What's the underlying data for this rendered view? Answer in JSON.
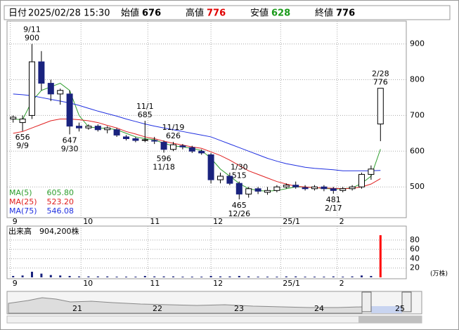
{
  "header": {
    "date_label": "日付",
    "date": "2025/02/28 15:30",
    "open_label": "始値",
    "open": "676",
    "high_label": "高値",
    "high": "776",
    "low_label": "安値",
    "low": "628",
    "close_label": "終値",
    "close": "776"
  },
  "chart_data": [
    {
      "type": "candlestick",
      "open": [
        690,
        680,
        700,
        850,
        790,
        760,
        760,
        670,
        665,
        670,
        660,
        660,
        640,
        635,
        630,
        630,
        625,
        605,
        615,
        610,
        600,
        590,
        520,
        530,
        510,
        480,
        495,
        485,
        490,
        500,
        505,
        498,
        495,
        500,
        495,
        490,
        495,
        500,
        535,
        676
      ],
      "high": [
        700,
        700,
        900,
        880,
        800,
        775,
        770,
        680,
        675,
        675,
        670,
        665,
        645,
        640,
        685,
        640,
        630,
        626,
        620,
        615,
        605,
        595,
        540,
        540,
        515,
        500,
        500,
        500,
        505,
        510,
        515,
        505,
        505,
        505,
        500,
        500,
        505,
        540,
        560,
        776
      ],
      "low": [
        680,
        656,
        690,
        770,
        740,
        730,
        647,
        655,
        660,
        655,
        650,
        640,
        630,
        625,
        625,
        620,
        596,
        600,
        605,
        595,
        590,
        510,
        510,
        505,
        465,
        470,
        480,
        478,
        485,
        495,
        495,
        490,
        490,
        488,
        481,
        485,
        490,
        495,
        520,
        628
      ],
      "close": [
        695,
        690,
        850,
        790,
        760,
        770,
        670,
        665,
        670,
        660,
        665,
        645,
        635,
        630,
        632,
        628,
        605,
        618,
        612,
        600,
        595,
        520,
        530,
        510,
        480,
        495,
        488,
        490,
        500,
        505,
        500,
        495,
        500,
        495,
        490,
        495,
        500,
        535,
        550,
        776
      ],
      "up_color": "#ffffff",
      "down_color": "#1a237e",
      "series": [
        {
          "name": "MA(5)",
          "color": "#2e9e2e",
          "legend_label": "605.80",
          "values": [
            690,
            688,
            740,
            770,
            780,
            790,
            770,
            700,
            668,
            665,
            664,
            660,
            650,
            640,
            635,
            632,
            622,
            615,
            612,
            608,
            602,
            580,
            550,
            530,
            510,
            495,
            490,
            488,
            490,
            495,
            500,
            500,
            498,
            496,
            494,
            495,
            497,
            510,
            530,
            605.8
          ]
        },
        {
          "name": "MA(25)",
          "color": "#e02020",
          "legend_label": "523.20",
          "values": [
            650,
            655,
            665,
            675,
            685,
            690,
            690,
            688,
            685,
            680,
            672,
            665,
            655,
            648,
            640,
            635,
            628,
            622,
            617,
            612,
            608,
            598,
            588,
            575,
            560,
            545,
            535,
            525,
            515,
            508,
            502,
            500,
            498,
            497,
            496,
            495,
            496,
            500,
            508,
            523.2
          ]
        },
        {
          "name": "MA(75)",
          "color": "#2030e0",
          "legend_label": "546.08",
          "values": [
            760,
            758,
            755,
            750,
            745,
            740,
            735,
            728,
            720,
            712,
            705,
            698,
            690,
            683,
            676,
            670,
            665,
            660,
            655,
            650,
            645,
            640,
            630,
            620,
            610,
            600,
            590,
            580,
            572,
            565,
            560,
            555,
            552,
            550,
            548,
            545,
            545,
            545,
            545,
            546.08
          ]
        }
      ],
      "high_low_labels": [
        {
          "date": "9/11",
          "value": 900
        },
        {
          "date": "9/9",
          "value": 656
        },
        {
          "date": "9/30",
          "value": 647
        },
        {
          "date": "11/1",
          "value": 685
        },
        {
          "date": "11/19",
          "value": 626
        },
        {
          "date": "11/18",
          "value": 596
        },
        {
          "date": "12/26",
          "value": 465
        },
        {
          "date": "1/30",
          "value": 515
        },
        {
          "date": "2/17",
          "value": 481
        },
        {
          "date": "2/28",
          "value": 776
        }
      ],
      "xlim": [
        -0.5,
        39.5
      ],
      "xticks": [
        {
          "value": 0,
          "label": "9"
        },
        {
          "value": 7.5,
          "label": "10"
        },
        {
          "value": 14.6,
          "label": "11"
        },
        {
          "value": 21.3,
          "label": "12"
        },
        {
          "value": 28.7,
          "label": "25/1"
        },
        {
          "value": 34.7,
          "label": "2"
        }
      ],
      "ylim": [
        414,
        964
      ],
      "yticks": [
        500,
        600,
        700,
        800,
        900
      ],
      "grid": true
    },
    {
      "type": "bar",
      "title": "出来高　904,200株",
      "unit": "(万株)",
      "color": "#1a237e",
      "latest_color": "#ff0000",
      "values": [
        3,
        4,
        12,
        8,
        5,
        4,
        3,
        2,
        2,
        2,
        2,
        1.5,
        1.5,
        1.5,
        3,
        2,
        2,
        2,
        1.5,
        1.5,
        1.5,
        3,
        2,
        2,
        3,
        2,
        1.5,
        1.5,
        1.5,
        2,
        2,
        1.5,
        1.5,
        1.5,
        2,
        1.5,
        2,
        4,
        3,
        90.42
      ],
      "xlim": [
        -0.5,
        39.5
      ],
      "xticks": [
        {
          "value": 0,
          "label": "9"
        },
        {
          "value": 7.5,
          "label": "10"
        },
        {
          "value": 14.6,
          "label": "11"
        },
        {
          "value": 21.3,
          "label": "12"
        },
        {
          "value": 28.7,
          "label": "25/1"
        },
        {
          "value": 34.7,
          "label": "2"
        }
      ],
      "ylim": [
        0,
        110
      ],
      "yticks": [
        20,
        40,
        60,
        80
      ],
      "grid": true
    }
  ],
  "navigator": {
    "labels": [
      "21",
      "22",
      "23",
      "24",
      "25"
    ]
  }
}
